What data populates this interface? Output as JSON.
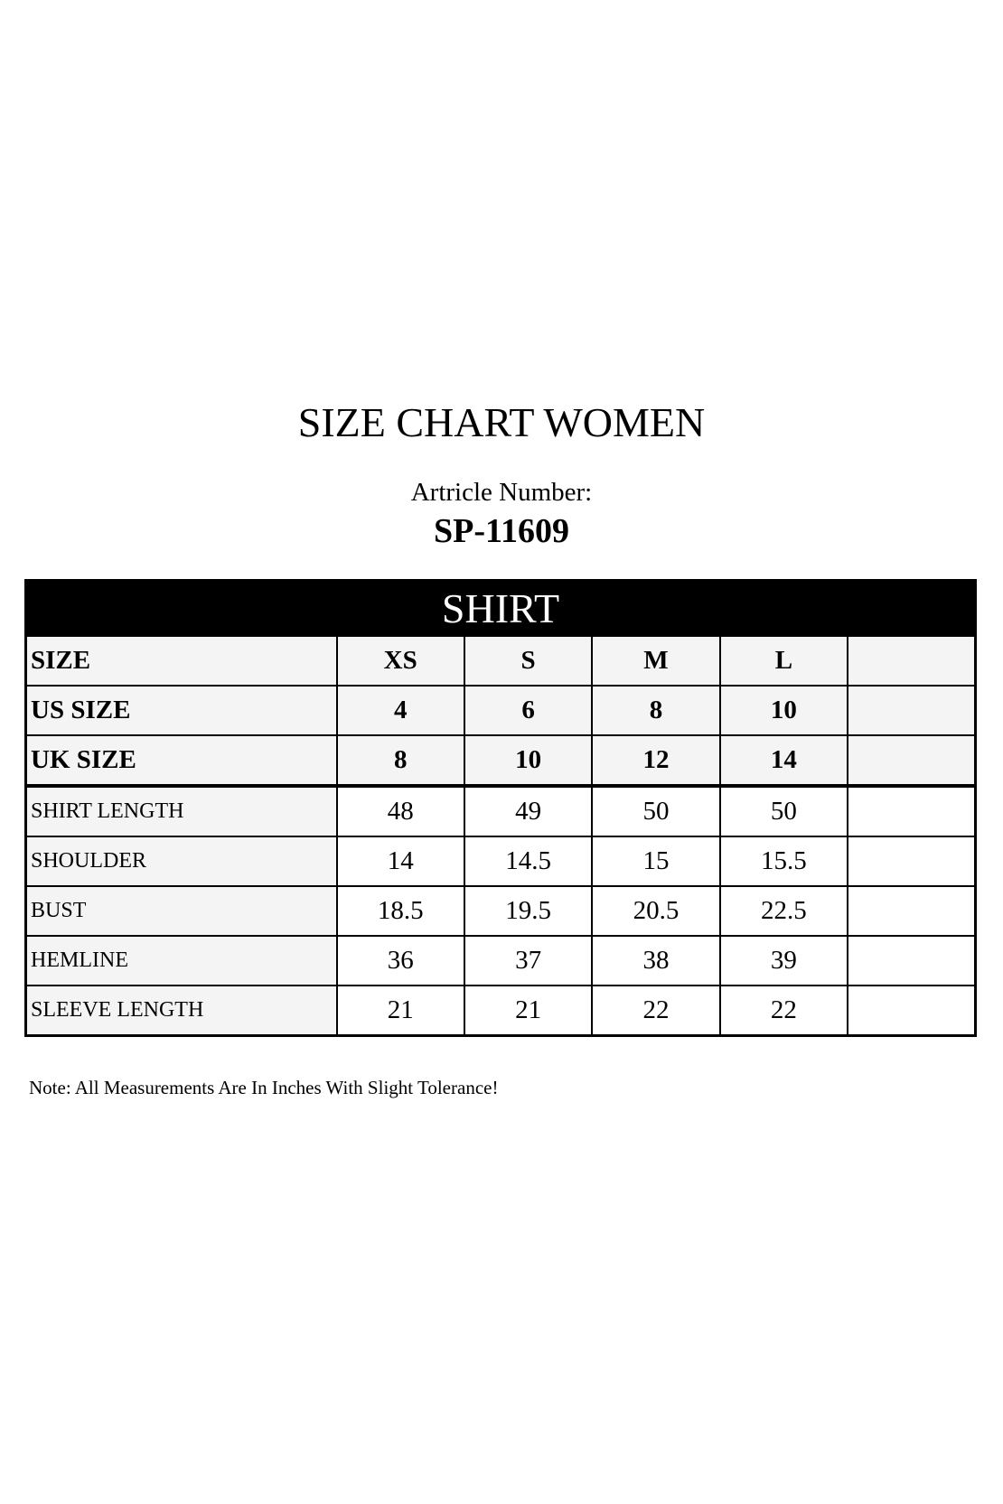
{
  "title": "SIZE CHART WOMEN",
  "article_label": "Artricle Number:",
  "article_number": "SP-11609",
  "table": {
    "section": "SHIRT",
    "header_rows": [
      {
        "label": "SIZE",
        "values": [
          "XS",
          "S",
          "M",
          "L",
          ""
        ]
      },
      {
        "label": "US SIZE",
        "values": [
          "4",
          "6",
          "8",
          "10",
          ""
        ]
      },
      {
        "label": "UK SIZE",
        "values": [
          "8",
          "10",
          "12",
          "14",
          ""
        ]
      }
    ],
    "rows": [
      {
        "label": "SHIRT LENGTH",
        "values": [
          "48",
          "49",
          "50",
          "50",
          ""
        ]
      },
      {
        "label": "SHOULDER",
        "values": [
          "14",
          "14.5",
          "15",
          "15.5",
          ""
        ]
      },
      {
        "label": "BUST",
        "values": [
          "18.5",
          "19.5",
          "20.5",
          "22.5",
          ""
        ]
      },
      {
        "label": "HEMLINE",
        "values": [
          "36",
          "37",
          "38",
          "39",
          ""
        ]
      },
      {
        "label": "SLEEVE LENGTH",
        "values": [
          "21",
          "21",
          "22",
          "22",
          ""
        ]
      }
    ]
  },
  "note": "Note: All Measurements Are In Inches With Slight Tolerance!"
}
